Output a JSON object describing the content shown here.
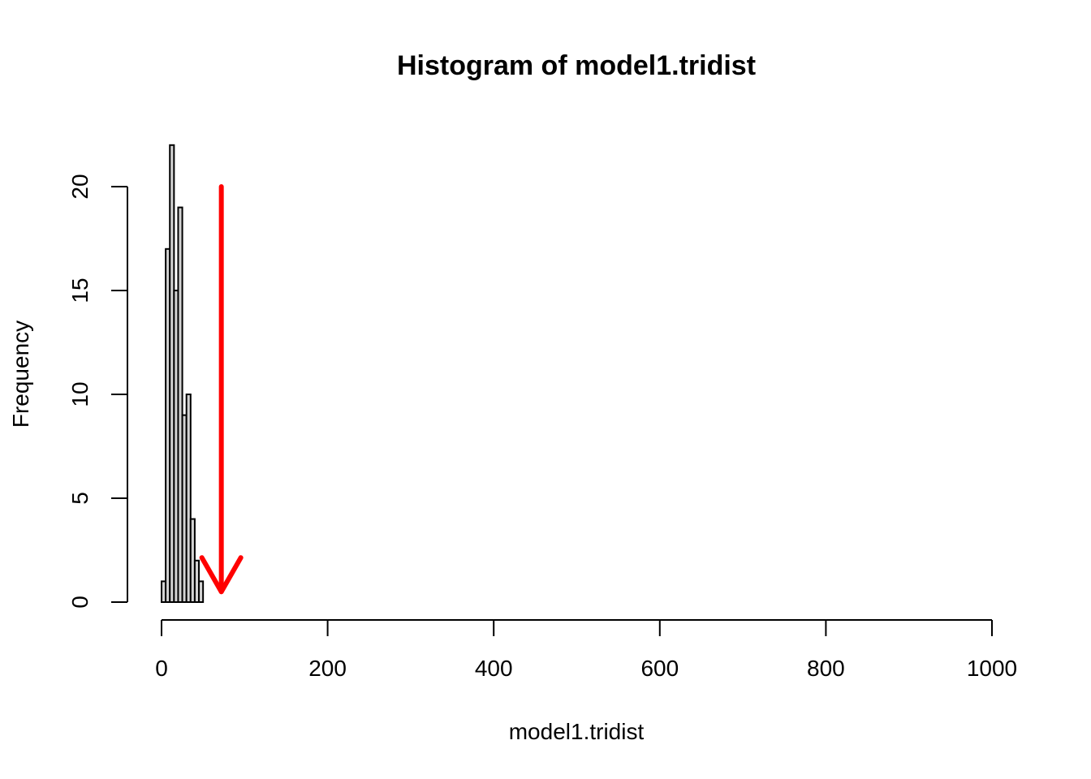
{
  "chart_data": {
    "type": "bar",
    "title": "Histogram of model1.tridist",
    "xlabel": "model1.tridist",
    "ylabel": "Frequency",
    "xlim": [
      0,
      1000
    ],
    "ylim": [
      0,
      22
    ],
    "x_ticks": [
      0,
      200,
      400,
      600,
      800,
      1000
    ],
    "x_tick_labels": [
      "0",
      "200",
      "400",
      "600",
      "800",
      "1000"
    ],
    "y_ticks": [
      0,
      5,
      10,
      15,
      20
    ],
    "y_tick_labels": [
      "0",
      "5",
      "10",
      "15",
      "20"
    ],
    "bin_width": 5,
    "bins": [
      {
        "start": 0,
        "end": 5,
        "count": 1
      },
      {
        "start": 5,
        "end": 10,
        "count": 17
      },
      {
        "start": 10,
        "end": 15,
        "count": 22
      },
      {
        "start": 15,
        "end": 20,
        "count": 15
      },
      {
        "start": 20,
        "end": 25,
        "count": 19
      },
      {
        "start": 25,
        "end": 30,
        "count": 9
      },
      {
        "start": 30,
        "end": 35,
        "count": 10
      },
      {
        "start": 35,
        "end": 40,
        "count": 4
      },
      {
        "start": 40,
        "end": 45,
        "count": 2
      },
      {
        "start": 45,
        "end": 50,
        "count": 1
      }
    ],
    "annotation_arrow": {
      "color": "#ff0000",
      "x": 72,
      "y_from": 20,
      "y_to": 0.5
    },
    "grid": false,
    "bar_fill": "#d3d3d3"
  }
}
